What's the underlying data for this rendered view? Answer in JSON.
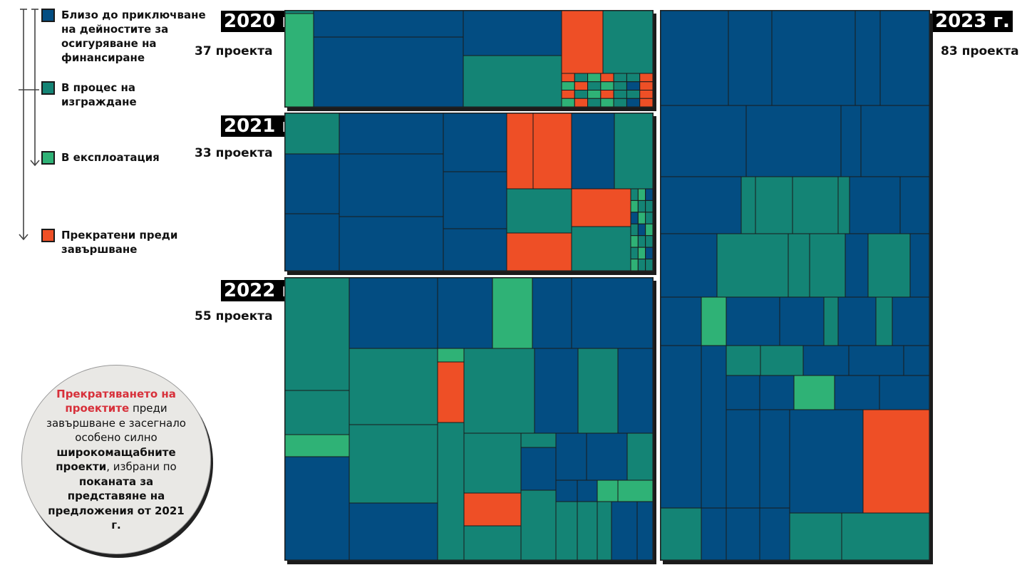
{
  "legend": {
    "items": [
      {
        "label": "Близо до приключване на дейностите за осигуряване на финансиране",
        "color": "#034d82"
      },
      {
        "label": "В процес на изграждане",
        "color": "#148475"
      },
      {
        "label": "В експлоатация",
        "color": "#2fb276"
      },
      {
        "label": "Прекратени преди завършване",
        "color": "#ee4f26"
      }
    ]
  },
  "callout": {
    "p1": "Прекратяването на проектите",
    "p2": " преди завършване е засегнало особено силно ",
    "p3": "широкомащабните проекти",
    "p4": ", избрани по ",
    "p5": "поканата за представяне на предложения от 2021 г."
  },
  "chart_data": [
    {
      "type": "treemap",
      "year": "2020 г.",
      "count": "37 проекта",
      "projects_by_status": {
        "Близо до приключване на дейностите за осигуряване на финансиране": 5,
        "В процес на изграждане": 14,
        "В експлоатация": 8,
        "Прекратени преди завършване": 10
      }
    },
    {
      "type": "treemap",
      "year": "2021 г.",
      "count": "33 проекта",
      "projects_by_status": {
        "Близо до приключване на дейностите за осигуряване на финансиране": 13,
        "В процес на изграждане": 10,
        "В експлоатация": 6,
        "Прекратени преди завършване": 4
      }
    },
    {
      "type": "treemap",
      "year": "2022 г.",
      "count": "55 проекта",
      "projects_by_status": {
        "Близо до приключване на дейностите за осигуряване на финансиране": 20,
        "В процес на изграждане": 26,
        "В експлоатация": 6,
        "Прекратени преди завършване": 3
      }
    },
    {
      "type": "treemap",
      "year": "2023 г.",
      "count": "83 проекта",
      "projects_by_status": {
        "Близо до приключване на дейностите за осигуряване на финансиране": 58,
        "В процес на изграждане": 22,
        "В експлоатация": 2,
        "Прекратени преди завършване": 1
      }
    }
  ]
}
